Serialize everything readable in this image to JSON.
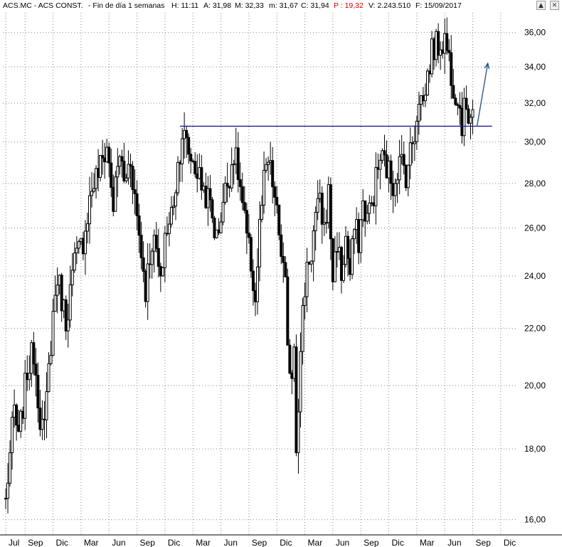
{
  "header": {
    "symbol": "ACS.MC - ACS CONST.",
    "period": "- Fin de día 1 semanas",
    "time": "H: 11:11",
    "open": "A: 31,98",
    "high": "M: 32,33",
    "low": "m: 31,67",
    "close": "C: 31,94",
    "per": "P : 19,32",
    "volume": "V: 2.243.510",
    "date": "F: 15/09/2017",
    "accent_color": "#d40000"
  },
  "window_buttons": {
    "scroll_up": "▲",
    "close": "✕"
  },
  "chart_data": {
    "type": "candlestick",
    "title": "ACS.MC - ACS CONST.",
    "frequency": "weekly",
    "y_scale": "log",
    "ylim": [
      15.6,
      37.2
    ],
    "y_ticks": [
      "16,00",
      "18,00",
      "20,00",
      "22,00",
      "24,00",
      "26,00",
      "28,00",
      "30,00",
      "32,00",
      "34,00",
      "36,00"
    ],
    "y_tick_values": [
      16,
      18,
      20,
      22,
      24,
      26,
      28,
      30,
      32,
      34,
      36
    ],
    "x_ticks": [
      "Jul",
      "Sep",
      "Dic",
      "Mar",
      "Jun",
      "Sep",
      "Dic",
      "Mar",
      "Jun",
      "Sep",
      "Dic",
      "Mar",
      "Jun",
      "Sep",
      "Dic",
      "Mar",
      "Jun",
      "Sep",
      "Dic"
    ],
    "x_tick_weeks": [
      0,
      9,
      22,
      35,
      48,
      61,
      74,
      87,
      100,
      113,
      126,
      139,
      152,
      165,
      178,
      191,
      204,
      217,
      230
    ],
    "total_weeks": 236,
    "grid": true,
    "price_keypoints": [
      [
        0,
        16.5
      ],
      [
        4,
        19.2
      ],
      [
        6,
        18.2
      ],
      [
        10,
        20.5
      ],
      [
        13,
        21.2
      ],
      [
        16,
        19.0
      ],
      [
        18,
        18.5
      ],
      [
        22,
        22.5
      ],
      [
        24,
        24.0
      ],
      [
        28,
        22.3
      ],
      [
        32,
        24.5
      ],
      [
        36,
        25.5
      ],
      [
        40,
        27.8
      ],
      [
        44,
        28.8
      ],
      [
        47,
        29.8
      ],
      [
        50,
        27.0
      ],
      [
        53,
        29.5
      ],
      [
        55,
        28.0
      ],
      [
        58,
        29.2
      ],
      [
        61,
        26.5
      ],
      [
        63,
        25.0
      ],
      [
        65,
        23.5
      ],
      [
        68,
        25.5
      ],
      [
        70,
        25.0
      ],
      [
        72,
        23.5
      ],
      [
        74,
        25.8
      ],
      [
        76,
        26.0
      ],
      [
        79,
        28.0
      ],
      [
        82,
        30.5
      ],
      [
        85,
        29.5
      ],
      [
        88,
        28.8
      ],
      [
        91,
        28.0
      ],
      [
        95,
        27.0
      ],
      [
        98,
        25.5
      ],
      [
        101,
        27.2
      ],
      [
        104,
        28.5
      ],
      [
        106,
        29.5
      ],
      [
        108,
        28.5
      ],
      [
        110,
        27.0
      ],
      [
        112,
        25.5
      ],
      [
        114,
        24.5
      ],
      [
        116,
        23.0
      ],
      [
        118,
        26.0
      ],
      [
        120,
        28.0
      ],
      [
        122,
        29.0
      ],
      [
        124,
        28.0
      ],
      [
        126,
        26.5
      ],
      [
        128,
        25.0
      ],
      [
        130,
        23.5
      ],
      [
        131,
        21.0
      ],
      [
        133,
        20.5
      ],
      [
        134,
        21.5
      ],
      [
        135,
        18.3
      ],
      [
        136,
        19.5
      ],
      [
        138,
        22.5
      ],
      [
        140,
        24.5
      ],
      [
        142,
        25.0
      ],
      [
        144,
        26.5
      ],
      [
        146,
        27.0
      ],
      [
        148,
        26.0
      ],
      [
        150,
        27.5
      ],
      [
        152,
        24.0
      ],
      [
        154,
        25.5
      ],
      [
        156,
        24.0
      ],
      [
        158,
        25.5
      ],
      [
        160,
        24.0
      ],
      [
        162,
        26.0
      ],
      [
        164,
        25.5
      ],
      [
        166,
        27.0
      ],
      [
        168,
        26.5
      ],
      [
        170,
        27.0
      ],
      [
        172,
        28.2
      ],
      [
        174,
        29.2
      ],
      [
        176,
        29.0
      ],
      [
        178,
        28.5
      ],
      [
        180,
        28.0
      ],
      [
        182,
        28.8
      ],
      [
        184,
        29.0
      ],
      [
        186,
        28.5
      ],
      [
        188,
        29.5
      ],
      [
        190,
        30.5
      ],
      [
        192,
        32.5
      ],
      [
        194,
        32.0
      ],
      [
        196,
        33.5
      ],
      [
        198,
        35.0
      ],
      [
        200,
        35.2
      ],
      [
        202,
        35.4
      ],
      [
        204,
        35.6
      ],
      [
        206,
        34.5
      ],
      [
        208,
        33.0
      ],
      [
        210,
        32.5
      ],
      [
        212,
        31.0
      ],
      [
        214,
        32.0
      ],
      [
        215,
        31.5
      ],
      [
        217,
        31.94
      ]
    ],
    "annotations": {
      "support_line": {
        "value": 30.8,
        "from_week": 81,
        "to_week": 226,
        "color": "#1a1aa0"
      },
      "arrow": {
        "from": [
          219,
          30.8
        ],
        "to": [
          224,
          34.2
        ],
        "color": "#1a4f8a"
      }
    },
    "colors": {
      "candle": "#000000",
      "grid": "#8a8a8a"
    }
  }
}
